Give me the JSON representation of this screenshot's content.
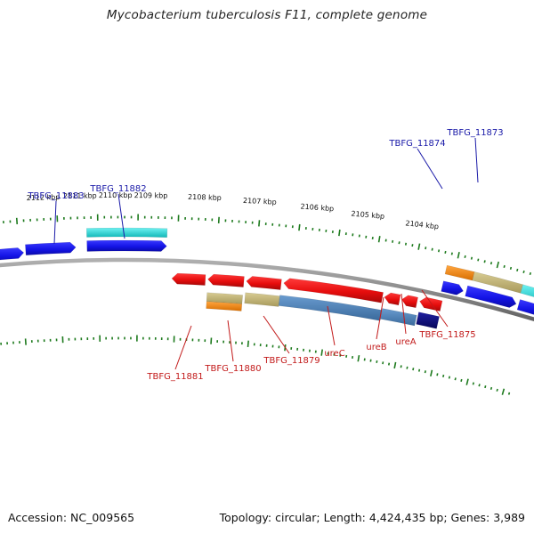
{
  "title": "Mycobacterium tuberculosis F11, complete genome",
  "footer": {
    "accession": "Accession: NC_009565",
    "summary": "Topology: circular; Length: 4,424,435 bp; Genes: 3,989"
  },
  "colors": {
    "backbone": "#8a8a8a",
    "tick": "#1d7a1d",
    "forward_label": "#1a1aa8",
    "reverse_label": "#c21a1a",
    "gene_blue": "#1414e6",
    "gene_red": "#e60d0d",
    "cyan": "#1fd6d6",
    "orange": "#f08a10",
    "khaki": "#bdb076",
    "steelblue": "#4b7fb3",
    "navy": "#0c0c80"
  },
  "scale": {
    "ticks": [
      {
        "kbp": 2112,
        "label": "2112 kbp"
      },
      {
        "kbp": 2111,
        "label": "2111 kbp"
      },
      {
        "kbp": 2110,
        "label": "2110 kbp"
      },
      {
        "kbp": 2109,
        "label": "2109 kbp"
      },
      {
        "kbp": 2108,
        "label": "2108 kbp"
      },
      {
        "kbp": 2107,
        "label": "2107 kbp"
      },
      {
        "kbp": 2106,
        "label": "2106 kbp"
      },
      {
        "kbp": 2105,
        "label": "2105 kbp"
      },
      {
        "kbp": 2104,
        "label": "2104 kbp"
      }
    ]
  },
  "forward_labels": [
    {
      "name": "TBFG_11883"
    },
    {
      "name": "TBFG_11882"
    },
    {
      "name": "TBFG_11874"
    },
    {
      "name": "TBFG_11873"
    }
  ],
  "reverse_labels": [
    {
      "name": "TBFG_11881"
    },
    {
      "name": "TBFG_11880"
    },
    {
      "name": "TBFG_11879"
    },
    {
      "name": "ureC"
    },
    {
      "name": "ureB"
    },
    {
      "name": "ureA"
    },
    {
      "name": "TBFG_11875"
    }
  ]
}
